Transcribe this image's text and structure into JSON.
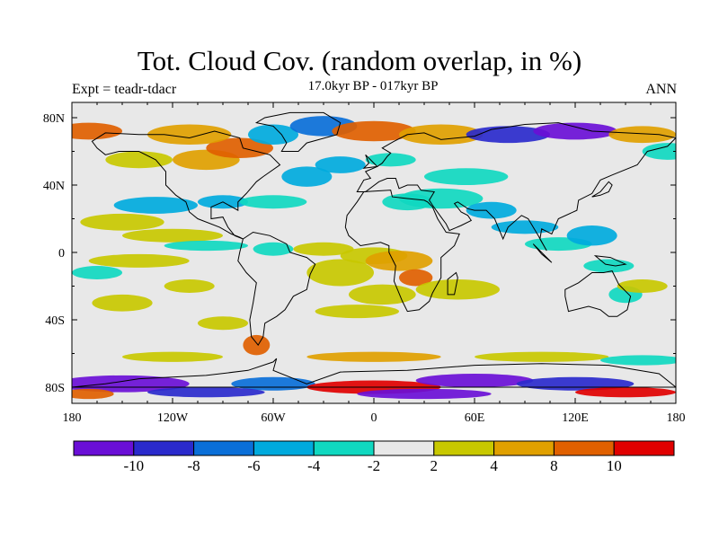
{
  "title": "Tot. Cloud Cov. (random overlap, in %)",
  "left_label": "Expt = teadr-tdacr",
  "center_label": "17.0kyr BP - 017kyr BP",
  "right_label": "ANN",
  "map": {
    "lon_ticks": [
      "180",
      "120W",
      "60W",
      "0",
      "60E",
      "120E",
      "180"
    ],
    "lat_ticks": [
      "80N",
      "40N",
      "0",
      "40S",
      "80S"
    ],
    "ocean_color": "#e8e8e8",
    "coast_color": "#000000"
  },
  "colorbar": {
    "colors": [
      "#6a0fd6",
      "#2a2acc",
      "#0a6fd8",
      "#00aadd",
      "#10d8c0",
      "#e8e8e8",
      "#c8c800",
      "#e0a000",
      "#e06000",
      "#e00000"
    ],
    "labels": [
      "-10",
      "-8",
      "-6",
      "-4",
      "-2",
      "2",
      "4",
      "8",
      "10"
    ]
  }
}
